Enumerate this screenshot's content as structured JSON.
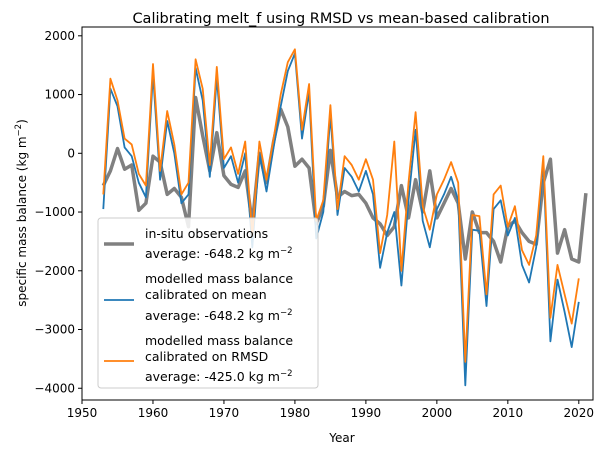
{
  "chart_data": {
    "type": "line",
    "title": "Calibrating melt_f using RMSD vs mean-based calibration",
    "xlabel": "Year",
    "ylabel_main": "specific mass balance (kg m",
    "ylabel_sup": "−2",
    "ylabel_end": ")",
    "xlim": [
      1950,
      2022
    ],
    "ylim": [
      -4200,
      2150
    ],
    "xticks": [
      1950,
      1960,
      1970,
      1980,
      1990,
      2000,
      2010,
      2020
    ],
    "yticks": [
      -4000,
      -3000,
      -2000,
      -1000,
      0,
      1000,
      2000
    ],
    "x_start": 1953,
    "series": [
      {
        "name": "in-situ observations",
        "color": "#808080",
        "width": 3.5,
        "legend_lines": [
          "in-situ observations"
        ],
        "average_text": "average: -648.2 kg m",
        "values": [
          -550,
          -300,
          80,
          -270,
          -200,
          -970,
          -850,
          -50,
          -150,
          -700,
          -600,
          -750,
          -1250,
          950,
          300,
          -300,
          350,
          -380,
          -530,
          -580,
          -300,
          -1200,
          0,
          -500,
          200,
          750,
          450,
          -220,
          -100,
          -250,
          -1200,
          -900,
          50,
          -750,
          -650,
          -720,
          -700,
          -850,
          -1100,
          -1200,
          -1400,
          -1250,
          -550,
          -1100,
          -450,
          -1000,
          -300,
          -1100,
          -850,
          -600,
          -850,
          -1800,
          -1000,
          -1350,
          -1350,
          -1500,
          -1850,
          -1250,
          -1150,
          -1350,
          -1500,
          -1550,
          -500,
          -100,
          -1700,
          -1300,
          -1800,
          -1850,
          -680
        ]
      },
      {
        "name": "modelled mass balance calibrated on mean",
        "color": "#1f77b4",
        "width": 1.8,
        "legend_lines": [
          "modelled mass balance",
          "calibrated on mean"
        ],
        "average_text": "average: -648.2 kg m",
        "values": [
          -950,
          1100,
          800,
          100,
          -50,
          -500,
          -750,
          1350,
          -450,
          550,
          0,
          -850,
          -700,
          1450,
          900,
          -400,
          1300,
          -250,
          -50,
          -500,
          0,
          -1600,
          0,
          -650,
          100,
          800,
          1400,
          1700,
          250,
          1050,
          -1450,
          -1000,
          650,
          -1050,
          -250,
          -400,
          -650,
          -300,
          -700,
          -1950,
          -1350,
          -1000,
          -2250,
          -800,
          400,
          -1150,
          -1600,
          -950,
          -700,
          -400,
          -800,
          -3950,
          -1300,
          -1320,
          -2600,
          -950,
          -800,
          -1400,
          -1100,
          -1900,
          -2200,
          -1600,
          -150,
          -3200,
          -2150,
          -2700,
          -3300,
          -2530
        ]
      },
      {
        "name": "modelled mass balance calibrated on RMSD",
        "color": "#ff7f0e",
        "width": 1.8,
        "legend_lines": [
          "modelled mass balance",
          "calibrated on RMSD"
        ],
        "average_text": "average: -425.0 kg m",
        "values": [
          -700,
          1270,
          900,
          250,
          150,
          -350,
          -550,
          1520,
          -300,
          720,
          150,
          -700,
          -500,
          1600,
          1100,
          -200,
          1470,
          -100,
          100,
          -350,
          200,
          -1400,
          200,
          -450,
          250,
          1000,
          1550,
          1770,
          400,
          1180,
          -1150,
          -800,
          820,
          -950,
          -50,
          -200,
          -450,
          -100,
          -450,
          -1700,
          -1050,
          200,
          -2000,
          -500,
          700,
          -900,
          -1300,
          -700,
          -450,
          -150,
          -500,
          -3550,
          -1050,
          -1070,
          -2400,
          -700,
          -550,
          -1250,
          -900,
          -1650,
          -1900,
          -1400,
          -50,
          -2800,
          -1900,
          -2400,
          -2900,
          -2130
        ]
      }
    ],
    "average_sup": "−2"
  }
}
